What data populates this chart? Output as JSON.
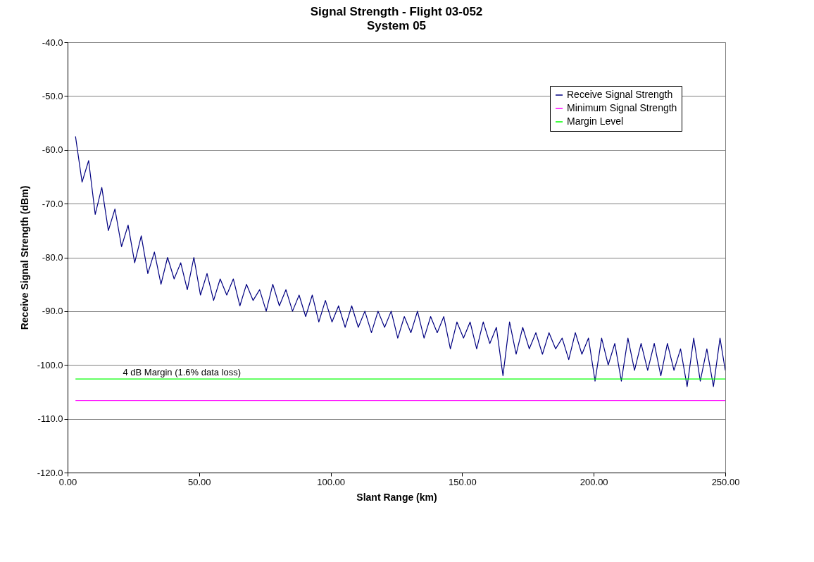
{
  "chart_data": {
    "type": "line",
    "title": "Signal Strength - Flight 03-052",
    "subtitle": "System 05",
    "xlabel": "Slant Range (km)",
    "ylabel": "Receive Signal Strength (dBm)",
    "xlim": [
      0,
      250
    ],
    "xticks": [
      {
        "value": 0,
        "label": "0.00"
      },
      {
        "value": 50,
        "label": "50.00"
      },
      {
        "value": 100,
        "label": "100.00"
      },
      {
        "value": 150,
        "label": "150.00"
      },
      {
        "value": 200,
        "label": "200.00"
      },
      {
        "value": 250,
        "label": "250.00"
      }
    ],
    "ylim": [
      -120,
      -40
    ],
    "yticks": [
      {
        "value": -120,
        "label": "-120.0"
      },
      {
        "value": -110,
        "label": "-110.0"
      },
      {
        "value": -100,
        "label": "-100.0"
      },
      {
        "value": -90,
        "label": "-90.0"
      },
      {
        "value": -80,
        "label": "-80.0"
      },
      {
        "value": -70,
        "label": "-70.0"
      },
      {
        "value": -60,
        "label": "-60.0"
      },
      {
        "value": -50,
        "label": "-50.0"
      },
      {
        "value": -40,
        "label": "-40.0"
      }
    ],
    "grid": "y",
    "legend": "top right",
    "series": [
      {
        "name": "Receive Signal Strength",
        "color": "#000080",
        "x": [
          3,
          5.5,
          8,
          10.5,
          13,
          15.5,
          18,
          20.5,
          23,
          25.5,
          28,
          30.5,
          33,
          35.5,
          38,
          40.5,
          43,
          45.5,
          48,
          50.5,
          53,
          55.5,
          58,
          60.5,
          63,
          65.5,
          68,
          70.5,
          73,
          75.5,
          78,
          80.5,
          83,
          85.5,
          88,
          90.5,
          93,
          95.5,
          98,
          100.5,
          103,
          105.5,
          108,
          110.5,
          113,
          115.5,
          118,
          120.5,
          123,
          125.5,
          128,
          130.5,
          133,
          135.5,
          138,
          140.5,
          143,
          145.5,
          148,
          150.5,
          153,
          155.5,
          158,
          160.5,
          163,
          165.5,
          168,
          170.5,
          173,
          175.5,
          178,
          180.5,
          183,
          185.5,
          188,
          190.5,
          193,
          195.5,
          198,
          200.5,
          203,
          205.5,
          208,
          210.5,
          213,
          215.5,
          218,
          220.5,
          223,
          225.5,
          228,
          230.5,
          233,
          235.5,
          238,
          240.5,
          243,
          245.5,
          248,
          250
        ],
        "values": [
          -57.5,
          -66,
          -62,
          -72,
          -67,
          -75,
          -71,
          -78,
          -74,
          -81,
          -76,
          -83,
          -79,
          -85,
          -80,
          -84,
          -81,
          -86,
          -80,
          -87,
          -83,
          -88,
          -84,
          -87,
          -84,
          -89,
          -85,
          -88,
          -86,
          -90,
          -85,
          -89,
          -86,
          -90,
          -87,
          -91,
          -87,
          -92,
          -88,
          -92,
          -89,
          -93,
          -89,
          -93,
          -90,
          -94,
          -90,
          -93,
          -90,
          -95,
          -91,
          -94,
          -90,
          -95,
          -91,
          -94,
          -91,
          -97,
          -92,
          -95,
          -92,
          -97,
          -92,
          -96,
          -93,
          -102,
          -92,
          -98,
          -93,
          -97,
          -94,
          -98,
          -94,
          -97,
          -95,
          -99,
          -94,
          -98,
          -95,
          -103,
          -95,
          -100,
          -96,
          -103,
          -95,
          -101,
          -96,
          -101,
          -96,
          -102,
          -96,
          -101,
          -97,
          -104,
          -95,
          -103,
          -97,
          -104,
          -95,
          -101
        ]
      },
      {
        "name": "Minimum Signal Strength",
        "color": "#ff00ff",
        "x": [
          3,
          250
        ],
        "values": [
          -106.6,
          -106.6
        ]
      },
      {
        "name": "Margin Level",
        "color": "#00ff00",
        "x": [
          3,
          250
        ],
        "values": [
          -102.6,
          -102.6
        ]
      }
    ],
    "annotations": [
      {
        "text": "4 dB Margin (1.6% data loss)",
        "x": 21,
        "y": -102.6
      }
    ]
  }
}
